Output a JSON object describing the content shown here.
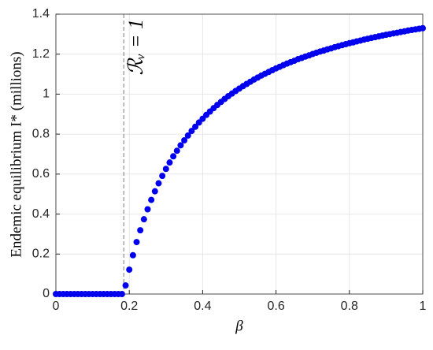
{
  "chart_data": {
    "type": "scatter",
    "xlabel": "β",
    "ylabel": "Endemic equilibrium I* (millions)",
    "x": [
      0,
      0.01,
      0.02,
      0.03,
      0.04,
      0.05,
      0.06,
      0.07,
      0.08,
      0.09,
      0.1,
      0.11,
      0.12,
      0.13,
      0.14,
      0.15,
      0.16,
      0.17,
      0.18,
      0.19,
      0.2,
      0.21,
      0.22,
      0.23,
      0.24,
      0.25,
      0.26,
      0.27,
      0.28,
      0.29,
      0.3,
      0.31,
      0.32,
      0.33,
      0.34,
      0.35,
      0.36,
      0.37,
      0.38,
      0.39,
      0.4,
      0.41,
      0.42,
      0.43,
      0.44,
      0.45,
      0.46,
      0.47,
      0.48,
      0.49,
      0.5,
      0.51,
      0.52,
      0.53,
      0.54,
      0.55,
      0.56,
      0.57,
      0.58,
      0.59,
      0.6,
      0.61,
      0.62,
      0.63,
      0.64,
      0.65,
      0.66,
      0.67,
      0.68,
      0.69,
      0.7,
      0.71,
      0.72,
      0.73,
      0.74,
      0.75,
      0.76,
      0.77,
      0.78,
      0.79,
      0.8,
      0.81,
      0.82,
      0.83,
      0.84,
      0.85,
      0.86,
      0.87,
      0.88,
      0.89,
      0.9,
      0.91,
      0.92,
      0.93,
      0.94,
      0.95,
      0.96,
      0.97,
      0.98,
      0.99,
      1
    ],
    "values": [
      0,
      0,
      0,
      0,
      0,
      0,
      0,
      0,
      0,
      0,
      0,
      0,
      0,
      0,
      0,
      0,
      0,
      0,
      0,
      0.043,
      0.122,
      0.194,
      0.26,
      0.319,
      0.374,
      0.424,
      0.471,
      0.514,
      0.554,
      0.591,
      0.626,
      0.658,
      0.689,
      0.717,
      0.744,
      0.769,
      0.793,
      0.816,
      0.837,
      0.858,
      0.877,
      0.896,
      0.913,
      0.93,
      0.946,
      0.961,
      0.976,
      0.99,
      1.003,
      1.016,
      1.028,
      1.04,
      1.051,
      1.062,
      1.073,
      1.083,
      1.093,
      1.102,
      1.111,
      1.12,
      1.129,
      1.137,
      1.145,
      1.153,
      1.16,
      1.167,
      1.175,
      1.181,
      1.188,
      1.194,
      1.201,
      1.207,
      1.213,
      1.218,
      1.224,
      1.229,
      1.235,
      1.24,
      1.245,
      1.25,
      1.255,
      1.259,
      1.264,
      1.268,
      1.273,
      1.277,
      1.281,
      1.285,
      1.289,
      1.293,
      1.297,
      1.3,
      1.304,
      1.307,
      1.311,
      1.314,
      1.318,
      1.321,
      1.324,
      1.327,
      1.33
    ],
    "color": "#0000ee",
    "threshold": {
      "x": 0.185,
      "label": "ℛᵥ = 1"
    },
    "xlim": [
      0,
      1
    ],
    "xticks": [
      0,
      0.2,
      0.4,
      0.6,
      0.8,
      1
    ],
    "ylim": [
      0,
      1.4
    ],
    "yticks": [
      0,
      0.2,
      0.4,
      0.6,
      0.8,
      1,
      1.2,
      1.4
    ],
    "grid": true
  }
}
